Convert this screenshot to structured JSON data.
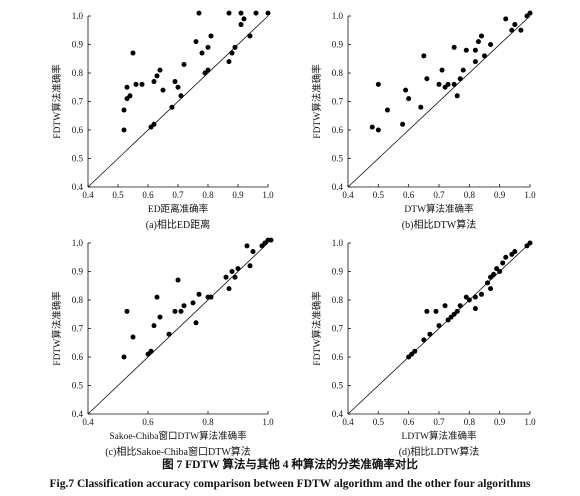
{
  "figure": {
    "caption_cn": "图 7   FDTW 算法与其他 4 种算法的分类准确率对比",
    "caption_en": "Fig.7   Classification accuracy comparison between FDTW algorithm and the other four algorithms"
  },
  "chart_data": [
    {
      "type": "scatter",
      "subcaption": "(a)相比ED距离",
      "xlabel": "ED距离准确率",
      "ylabel": "FDTW算法准确率",
      "xlim": [
        0.4,
        1.0
      ],
      "ylim": [
        0.4,
        1.0
      ],
      "xticks": [
        "0.4",
        "0.5",
        "0.6",
        "0.7",
        "0.8",
        "0.9",
        "1.0"
      ],
      "yticks": [
        "0.4",
        "0.5",
        "0.6",
        "0.7",
        "0.8",
        "0.9",
        "1.0"
      ],
      "diagonal": true,
      "points": [
        [
          0.52,
          0.6
        ],
        [
          0.52,
          0.67
        ],
        [
          0.53,
          0.71
        ],
        [
          0.53,
          0.75
        ],
        [
          0.54,
          0.72
        ],
        [
          0.55,
          0.87
        ],
        [
          0.56,
          0.76
        ],
        [
          0.58,
          0.76
        ],
        [
          0.61,
          0.61
        ],
        [
          0.62,
          0.62
        ],
        [
          0.62,
          0.77
        ],
        [
          0.63,
          0.79
        ],
        [
          0.64,
          0.81
        ],
        [
          0.65,
          0.74
        ],
        [
          0.68,
          0.68
        ],
        [
          0.69,
          0.77
        ],
        [
          0.7,
          0.75
        ],
        [
          0.71,
          0.72
        ],
        [
          0.72,
          0.83
        ],
        [
          0.76,
          0.91
        ],
        [
          0.77,
          1.01
        ],
        [
          0.78,
          0.87
        ],
        [
          0.79,
          0.8
        ],
        [
          0.8,
          0.81
        ],
        [
          0.8,
          0.89
        ],
        [
          0.81,
          0.93
        ],
        [
          0.87,
          0.84
        ],
        [
          0.87,
          1.01
        ],
        [
          0.88,
          0.87
        ],
        [
          0.89,
          0.89
        ],
        [
          0.91,
          1.01
        ],
        [
          0.91,
          0.97
        ],
        [
          0.92,
          0.99
        ],
        [
          0.94,
          0.93
        ],
        [
          0.96,
          1.01
        ],
        [
          1.0,
          1.01
        ]
      ]
    },
    {
      "type": "scatter",
      "subcaption": "(b)相比DTW算法",
      "xlabel": "DTW算法准确率",
      "ylabel": "FDTW算法准确率",
      "xlim": [
        0.4,
        1.0
      ],
      "ylim": [
        0.4,
        1.0
      ],
      "xticks": [
        "0.4",
        "0.5",
        "0.6",
        "0.7",
        "0.8",
        "0.9",
        "1.0"
      ],
      "yticks": [
        "0.4",
        "0.5",
        "0.6",
        "0.7",
        "0.8",
        "0.9",
        "1.0"
      ],
      "diagonal": true,
      "points": [
        [
          0.48,
          0.61
        ],
        [
          0.5,
          0.6
        ],
        [
          0.5,
          0.76
        ],
        [
          0.53,
          0.67
        ],
        [
          0.58,
          0.62
        ],
        [
          0.59,
          0.74
        ],
        [
          0.6,
          0.71
        ],
        [
          0.64,
          0.68
        ],
        [
          0.65,
          0.86
        ],
        [
          0.66,
          0.78
        ],
        [
          0.7,
          0.76
        ],
        [
          0.71,
          0.81
        ],
        [
          0.72,
          0.75
        ],
        [
          0.73,
          0.76
        ],
        [
          0.75,
          0.76
        ],
        [
          0.75,
          0.89
        ],
        [
          0.76,
          0.72
        ],
        [
          0.77,
          0.78
        ],
        [
          0.78,
          0.81
        ],
        [
          0.79,
          0.88
        ],
        [
          0.82,
          0.84
        ],
        [
          0.82,
          0.88
        ],
        [
          0.83,
          0.91
        ],
        [
          0.84,
          0.93
        ],
        [
          0.85,
          0.86
        ],
        [
          0.87,
          0.9
        ],
        [
          0.92,
          0.99
        ],
        [
          0.94,
          0.95
        ],
        [
          0.95,
          0.97
        ],
        [
          0.97,
          0.95
        ],
        [
          0.99,
          1.0
        ],
        [
          1.0,
          1.01
        ]
      ]
    },
    {
      "type": "scatter",
      "subcaption": "(c)相比Sakoe-Chiba窗口DTW算法",
      "xlabel": "Sakoe-Chiba窗口DTW算法准确率",
      "ylabel": "FDTW算法准确率",
      "xlim": [
        0.4,
        1.0
      ],
      "ylim": [
        0.4,
        1.0
      ],
      "xticks": [
        "0.4",
        "0.6",
        "0.8",
        "1.0"
      ],
      "yticks": [
        "0.4",
        "0.5",
        "0.6",
        "0.7",
        "0.8",
        "0.9",
        "1.0"
      ],
      "diagonal": true,
      "points": [
        [
          0.52,
          0.6
        ],
        [
          0.53,
          0.76
        ],
        [
          0.55,
          0.67
        ],
        [
          0.6,
          0.61
        ],
        [
          0.61,
          0.62
        ],
        [
          0.62,
          0.71
        ],
        [
          0.63,
          0.81
        ],
        [
          0.64,
          0.74
        ],
        [
          0.67,
          0.68
        ],
        [
          0.69,
          0.76
        ],
        [
          0.7,
          0.87
        ],
        [
          0.71,
          0.76
        ],
        [
          0.72,
          0.78
        ],
        [
          0.75,
          0.79
        ],
        [
          0.76,
          0.72
        ],
        [
          0.77,
          0.82
        ],
        [
          0.8,
          0.81
        ],
        [
          0.81,
          0.81
        ],
        [
          0.86,
          0.88
        ],
        [
          0.87,
          0.84
        ],
        [
          0.88,
          0.9
        ],
        [
          0.89,
          0.88
        ],
        [
          0.9,
          0.91
        ],
        [
          0.93,
          0.99
        ],
        [
          0.94,
          0.92
        ],
        [
          0.95,
          0.97
        ],
        [
          0.98,
          0.99
        ],
        [
          0.99,
          1.0
        ],
        [
          1.0,
          1.01
        ],
        [
          1.01,
          1.01
        ]
      ]
    },
    {
      "type": "scatter",
      "subcaption": "(d)相比LDTW算法",
      "xlabel": "LDTW算法准确率",
      "ylabel": "FDTW算法准确率",
      "xlim": [
        0.4,
        1.0
      ],
      "ylim": [
        0.4,
        1.0
      ],
      "xticks": [
        "0.4",
        "0.5",
        "0.6",
        "0.7",
        "0.8",
        "0.9",
        "1.0"
      ],
      "yticks": [
        "0.4",
        "0.5",
        "0.6",
        "0.7",
        "0.8",
        "0.9",
        "1.0"
      ],
      "diagonal": true,
      "points": [
        [
          0.6,
          0.6
        ],
        [
          0.61,
          0.61
        ],
        [
          0.62,
          0.62
        ],
        [
          0.65,
          0.66
        ],
        [
          0.66,
          0.76
        ],
        [
          0.67,
          0.68
        ],
        [
          0.69,
          0.76
        ],
        [
          0.7,
          0.71
        ],
        [
          0.72,
          0.78
        ],
        [
          0.73,
          0.73
        ],
        [
          0.74,
          0.74
        ],
        [
          0.75,
          0.75
        ],
        [
          0.76,
          0.76
        ],
        [
          0.77,
          0.78
        ],
        [
          0.79,
          0.81
        ],
        [
          0.8,
          0.8
        ],
        [
          0.82,
          0.81
        ],
        [
          0.82,
          0.77
        ],
        [
          0.84,
          0.82
        ],
        [
          0.86,
          0.86
        ],
        [
          0.87,
          0.84
        ],
        [
          0.87,
          0.88
        ],
        [
          0.88,
          0.89
        ],
        [
          0.89,
          0.91
        ],
        [
          0.9,
          0.9
        ],
        [
          0.91,
          0.93
        ],
        [
          0.92,
          0.95
        ],
        [
          0.94,
          0.96
        ],
        [
          0.95,
          0.97
        ],
        [
          0.99,
          0.99
        ],
        [
          1.0,
          1.0
        ]
      ]
    }
  ]
}
